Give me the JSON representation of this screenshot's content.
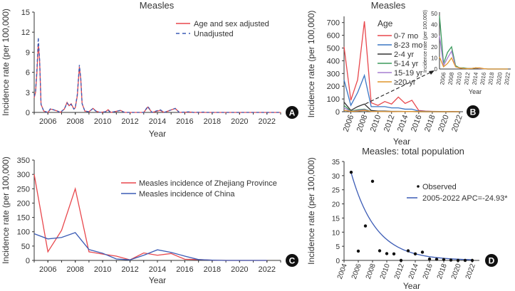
{
  "chart_data": [
    {
      "panel": "A",
      "type": "line",
      "title": "Measles",
      "xlabel": "Year",
      "ylabel": "Incidence rate (per 100,000)",
      "xlim": [
        2005,
        2023
      ],
      "ylim": [
        0,
        15
      ],
      "yticks": [
        "0",
        "3",
        "6",
        "9",
        "12",
        "15"
      ],
      "xticks": [
        "2006",
        "2008",
        "2010",
        "2012",
        "2014",
        "2016",
        "2018",
        "2020",
        "2022"
      ],
      "legend": "top-right",
      "series": [
        {
          "name": "Age and sex adjusted",
          "color": "#e8474c",
          "style": "solid",
          "points": [
            [
              2005,
              2.2
            ],
            [
              2005.1,
              3
            ],
            [
              2005.2,
              6
            ],
            [
              2005.3,
              10.3
            ],
            [
              2005.4,
              7.5
            ],
            [
              2005.5,
              1.2
            ],
            [
              2005.7,
              0.2
            ],
            [
              2006,
              0
            ],
            [
              2006.2,
              0.5
            ],
            [
              2006.4,
              0.4
            ],
            [
              2006.7,
              0.2
            ],
            [
              2006.9,
              0
            ],
            [
              2007.2,
              0.5
            ],
            [
              2007.4,
              1.5
            ],
            [
              2007.55,
              1
            ],
            [
              2007.7,
              1.3
            ],
            [
              2007.9,
              0.5
            ],
            [
              2008,
              0.7
            ],
            [
              2008.15,
              2.5
            ],
            [
              2008.3,
              6.8
            ],
            [
              2008.4,
              5
            ],
            [
              2008.5,
              1.3
            ],
            [
              2008.7,
              0.2
            ],
            [
              2009,
              0.1
            ],
            [
              2009.3,
              0.6
            ],
            [
              2009.5,
              0.2
            ],
            [
              2009.8,
              0
            ],
            [
              2010.2,
              0.1
            ],
            [
              2010.4,
              0.4
            ],
            [
              2010.6,
              0
            ],
            [
              2011.3,
              0.3
            ],
            [
              2011.6,
              0
            ],
            [
              2013,
              0
            ],
            [
              2013.3,
              0.8
            ],
            [
              2013.6,
              0
            ],
            [
              2014.2,
              0.3
            ],
            [
              2014.5,
              0
            ],
            [
              2015.3,
              0.6
            ],
            [
              2015.6,
              0
            ],
            [
              2016.4,
              0.05
            ],
            [
              2016.6,
              0
            ],
            [
              2023,
              0
            ]
          ]
        },
        {
          "name": "Unadjusted",
          "color": "#3b5bb5",
          "style": "dashed",
          "points": [
            [
              2005,
              2.4
            ],
            [
              2005.1,
              3.2
            ],
            [
              2005.2,
              6.4
            ],
            [
              2005.3,
              11.2
            ],
            [
              2005.4,
              7.8
            ],
            [
              2005.5,
              1.2
            ],
            [
              2005.7,
              0.2
            ],
            [
              2006,
              0
            ],
            [
              2006.2,
              0.6
            ],
            [
              2006.4,
              0.4
            ],
            [
              2006.7,
              0.2
            ],
            [
              2006.9,
              0
            ],
            [
              2007.2,
              0.5
            ],
            [
              2007.4,
              1.4
            ],
            [
              2007.55,
              1
            ],
            [
              2007.7,
              1.2
            ],
            [
              2007.9,
              0.5
            ],
            [
              2008,
              0.7
            ],
            [
              2008.15,
              2.7
            ],
            [
              2008.3,
              7.1
            ],
            [
              2008.4,
              5.2
            ],
            [
              2008.5,
              1.3
            ],
            [
              2008.7,
              0.2
            ],
            [
              2009,
              0.1
            ],
            [
              2009.3,
              0.6
            ],
            [
              2009.5,
              0.2
            ],
            [
              2009.8,
              0
            ],
            [
              2010.2,
              0.1
            ],
            [
              2010.4,
              0.3
            ],
            [
              2010.6,
              0
            ],
            [
              2011.3,
              0.3
            ],
            [
              2011.6,
              0
            ],
            [
              2013,
              0
            ],
            [
              2013.3,
              0.9
            ],
            [
              2013.6,
              0
            ],
            [
              2014.2,
              0.4
            ],
            [
              2014.5,
              0
            ],
            [
              2015.3,
              0.6
            ],
            [
              2015.6,
              0
            ],
            [
              2016.4,
              0.1
            ],
            [
              2016.6,
              0
            ],
            [
              2017.4,
              0.05
            ],
            [
              2017.6,
              0
            ],
            [
              2023,
              0
            ]
          ]
        }
      ]
    },
    {
      "panel": "B",
      "type": "line",
      "title": "Measles",
      "xlabel": "Year",
      "ylabel": "Incidence rate (per 100,000)",
      "xlim": [
        2005,
        2022
      ],
      "ylim": [
        0,
        750
      ],
      "yticks": [
        "0",
        "100",
        "200",
        "300",
        "400",
        "500",
        "600",
        "700"
      ],
      "xticks": [
        "2006",
        "2008",
        "2010",
        "2012",
        "2014",
        "2016",
        "2018",
        "2020",
        "2022"
      ],
      "legend_title": "Age",
      "years": [
        2005,
        2006,
        2007,
        2008,
        2009,
        2010,
        2011,
        2012,
        2013,
        2014,
        2015,
        2016,
        2017,
        2018,
        2019,
        2020,
        2021,
        2022
      ],
      "series": [
        {
          "name": "0-7 mo",
          "color": "#e8474c",
          "values": [
            510,
            90,
            250,
            710,
            70,
            50,
            80,
            60,
            115,
            65,
            90,
            10,
            5,
            3,
            2,
            0,
            2,
            0
          ]
        },
        {
          "name": "8-23 mo",
          "color": "#3a76c4",
          "values": [
            250,
            50,
            150,
            285,
            40,
            40,
            40,
            30,
            30,
            20,
            20,
            5,
            3,
            2,
            1,
            0,
            0,
            0
          ]
        },
        {
          "name": "2-4 yr",
          "color": "#333333",
          "values": [
            75,
            10,
            40,
            60,
            10,
            5,
            5,
            3,
            3,
            2,
            2,
            1,
            0,
            0,
            0,
            0,
            0,
            0
          ]
        },
        {
          "name": "5-14 yr",
          "color": "#3a9a5c",
          "values": [
            48,
            5,
            15,
            20,
            3,
            1,
            1,
            0.5,
            0.5,
            1,
            0.5,
            0.2,
            0,
            0,
            0,
            0,
            0,
            0
          ]
        },
        {
          "name": "15-19 yr",
          "color": "#a57fd0",
          "values": [
            30,
            3,
            10,
            16,
            2,
            1,
            0.5,
            0.3,
            0.5,
            1,
            0.5,
            0.2,
            0,
            0,
            0,
            0,
            0,
            0
          ]
        },
        {
          "name": "≥20 yr",
          "color": "#e0962c",
          "values": [
            11,
            2,
            5,
            10,
            2,
            1,
            0.5,
            0.3,
            0.5,
            1,
            1,
            0.3,
            0,
            0,
            0,
            0,
            0,
            0
          ]
        }
      ],
      "inset": {
        "ylabel": "Incidence rate (per 100,000)",
        "xlabel": "Year",
        "ylim": [
          0,
          50
        ],
        "yticks": [
          "0",
          "10",
          "20",
          "30",
          "40",
          "50"
        ],
        "xticks": [
          "2006",
          "2008",
          "2010",
          "2012",
          "2014",
          "2016",
          "2018",
          "2020",
          "2022"
        ],
        "series_shown": [
          "5-14 yr",
          "15-19 yr",
          "≥20 yr"
        ]
      }
    },
    {
      "panel": "C",
      "type": "line",
      "xlabel": "Year",
      "ylabel": "Incidence rate (per 100,000)",
      "xlim": [
        2005,
        2023
      ],
      "ylim": [
        0,
        350
      ],
      "yticks": [
        "0",
        "50",
        "100",
        "150",
        "200",
        "250",
        "300",
        "350"
      ],
      "xticks": [
        "2006",
        "2008",
        "2010",
        "2012",
        "2014",
        "2016",
        "2018",
        "2020",
        "2022"
      ],
      "years": [
        2005,
        2006,
        2007,
        2008,
        2009,
        2010,
        2011,
        2012,
        2013,
        2014,
        2015,
        2016,
        2017,
        2018,
        2019,
        2020,
        2021,
        2022
      ],
      "series": [
        {
          "name": "Measles incidence of Zhejiang Province",
          "color": "#e8474c",
          "values": [
            300,
            30,
            105,
            250,
            30,
            22,
            15,
            2,
            26,
            18,
            24,
            4,
            3,
            1,
            0,
            0,
            0,
            0
          ]
        },
        {
          "name": "Measles incidence of China",
          "color": "#3b5bb5",
          "values": [
            93,
            75,
            80,
            97,
            38,
            25,
            5,
            2,
            18,
            37,
            28,
            15,
            3,
            1,
            0,
            0,
            0,
            0
          ]
        }
      ]
    },
    {
      "panel": "D",
      "type": "scatter",
      "title": "Measles: total population",
      "xlabel": "Year",
      "ylabel": "Incidence rate (per 100,000)",
      "xlim": [
        2004,
        2023
      ],
      "ylim": [
        0,
        35
      ],
      "yticks": [
        "0",
        "5",
        "10",
        "15",
        "20",
        "25",
        "30",
        "35"
      ],
      "xticks": [
        "2004",
        "2006",
        "2008",
        "2010",
        "2012",
        "2014",
        "2016",
        "2018",
        "2020",
        "2022"
      ],
      "years": [
        2005,
        2006,
        2007,
        2008,
        2009,
        2010,
        2011,
        2012,
        2013,
        2014,
        2015,
        2016,
        2017,
        2018,
        2019,
        2020,
        2021,
        2022
      ],
      "observed": [
        31.2,
        3.3,
        12.2,
        28,
        3.4,
        2.4,
        2.3,
        0,
        3.4,
        2.3,
        2.9,
        0.5,
        0.4,
        0.3,
        0.1,
        0,
        0,
        0
      ],
      "observed_name": "Observed",
      "fit_name": "2005-2022 APC=-24.93*",
      "fit_color": "#3b5bb5",
      "fit_start": 31,
      "apc": -24.93
    }
  ],
  "badges": [
    "A",
    "B",
    "C",
    "D"
  ]
}
